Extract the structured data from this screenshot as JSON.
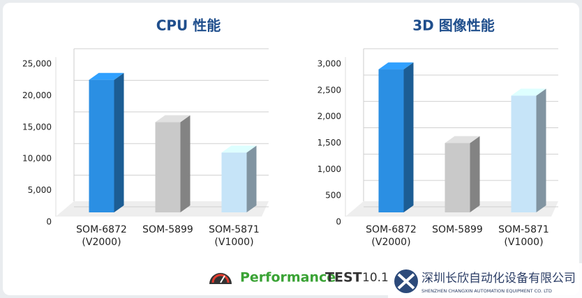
{
  "chart_data": [
    {
      "type": "bar3d",
      "title": "CPU 性能",
      "categories": [
        "SOM-6872 (V2000)",
        "SOM-5899",
        "SOM-5871 (V1000)"
      ],
      "values": [
        22500,
        15800,
        11000
      ],
      "colors": [
        "#2b8fe3",
        "#c9c9c9",
        "#c6e4f8"
      ],
      "ylim": [
        0,
        25000
      ],
      "yticks": [
        0,
        {
          "value": 5000,
          "label": "5,000"
        },
        {
          "value": 10000,
          "label": "10,000"
        },
        {
          "value": 15000,
          "label": "15,000"
        },
        {
          "value": 20000,
          "label": "20,000"
        },
        {
          "value": 25000,
          "label": "25,000"
        }
      ],
      "grid": true
    },
    {
      "type": "bar3d",
      "title": "3D 图像性能",
      "categories": [
        "SOM-6872 (V2000)",
        "SOM-5899",
        "SOM-5871 (V1000)"
      ],
      "values": [
        2900,
        1500,
        2400
      ],
      "colors": [
        "#2b8fe3",
        "#c9c9c9",
        "#c6e4f8"
      ],
      "ylim": [
        0,
        3000
      ],
      "yticks": [
        0,
        500,
        {
          "value": 1000,
          "label": "1,000"
        },
        {
          "value": 1500,
          "label": "1,500"
        },
        {
          "value": 2000,
          "label": "2,000"
        },
        {
          "value": 2500,
          "label": "2,500"
        },
        {
          "value": 3000,
          "label": "3,000"
        }
      ],
      "grid": true
    }
  ],
  "footer": {
    "brand_a": "Performance",
    "brand_b": "TEST",
    "version": "10.1",
    "company_cn": "深圳长欣自动化设备有限公司",
    "company_en": "SHENZHEN CHANGXIN AUTOMATION EQUIPMENT CO. LTD"
  }
}
